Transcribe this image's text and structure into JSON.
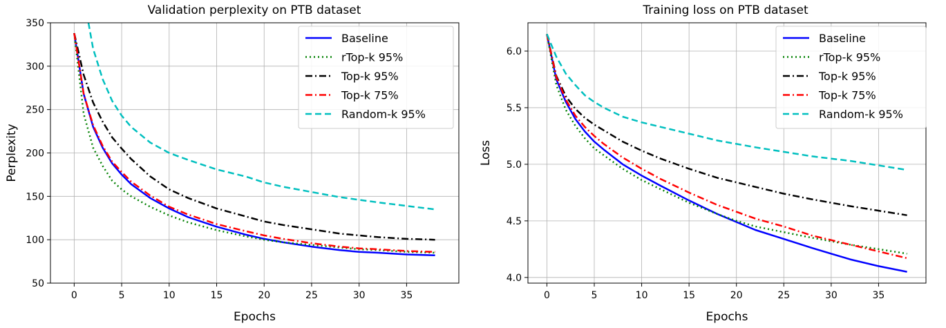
{
  "chart_data": [
    {
      "type": "line",
      "title": "Validation perplexity on PTB dataset",
      "xlabel": "Epochs",
      "ylabel": "Perplexity",
      "xlim": [
        -2.5,
        40.5
      ],
      "ylim": [
        50,
        350
      ],
      "xticks": [
        "0",
        "5",
        "10",
        "15",
        "20",
        "25",
        "30",
        "35"
      ],
      "yticks": [
        "50",
        "100",
        "150",
        "200",
        "250",
        "300",
        "350"
      ],
      "grid": true,
      "legend_position": "top-right",
      "series": [
        {
          "name": "Baseline",
          "color": "#0000ff",
          "style": "solid",
          "x": [
            0,
            1,
            2,
            3,
            4,
            5,
            6,
            8,
            10,
            12,
            15,
            18,
            20,
            22,
            25,
            28,
            30,
            32,
            35,
            38
          ],
          "y": [
            338,
            268,
            230,
            206,
            188,
            175,
            164,
            148,
            136,
            126,
            115,
            106,
            101,
            97,
            92,
            88,
            86,
            85,
            83,
            82
          ]
        },
        {
          "name": "rTop-k 95%",
          "color": "#008000",
          "style": "dotted",
          "x": [
            0,
            1,
            2,
            3,
            4,
            5,
            6,
            8,
            10,
            12,
            15,
            18,
            20,
            22,
            25,
            28,
            30,
            32,
            35,
            38
          ],
          "y": [
            338,
            245,
            206,
            185,
            168,
            158,
            150,
            138,
            128,
            120,
            111,
            104,
            100,
            97,
            94,
            91,
            89,
            88,
            86,
            85
          ]
        },
        {
          "name": "Top-k 95%",
          "color": "#000000",
          "style": "dashdot",
          "x": [
            0,
            1,
            2,
            3,
            4,
            5,
            6,
            8,
            10,
            12,
            15,
            18,
            20,
            22,
            25,
            28,
            30,
            32,
            35,
            38
          ],
          "y": [
            338,
            290,
            258,
            236,
            218,
            205,
            193,
            173,
            158,
            148,
            136,
            127,
            121,
            117,
            112,
            107,
            105,
            103,
            101,
            100
          ]
        },
        {
          "name": "Top-k 75%",
          "color": "#ff0000",
          "style": "dashdot",
          "x": [
            0,
            1,
            2,
            3,
            4,
            5,
            6,
            8,
            10,
            12,
            15,
            18,
            20,
            22,
            25,
            28,
            30,
            32,
            35,
            38
          ],
          "y": [
            338,
            268,
            232,
            208,
            190,
            178,
            167,
            151,
            138,
            129,
            118,
            110,
            105,
            101,
            96,
            92,
            90,
            89,
            87,
            86
          ]
        },
        {
          "name": "Random-k 95%",
          "color": "#00bfbf",
          "style": "dashed",
          "x": [
            1.5,
            2,
            3,
            4,
            5,
            6,
            8,
            10,
            12,
            15,
            18,
            20,
            22,
            25,
            28,
            30,
            32,
            35,
            38
          ],
          "y": [
            350,
            320,
            285,
            260,
            243,
            230,
            212,
            200,
            192,
            181,
            173,
            166,
            161,
            155,
            149,
            146,
            143,
            139,
            135
          ]
        }
      ]
    },
    {
      "type": "line",
      "title": "Training loss on PTB dataset",
      "xlabel": "Epochs",
      "ylabel": "Loss",
      "xlim": [
        -2,
        40
      ],
      "ylim": [
        3.95,
        6.25
      ],
      "xticks": [
        "0",
        "5",
        "10",
        "15",
        "20",
        "25",
        "30",
        "35"
      ],
      "yticks": [
        "4.0",
        "4.5",
        "5.0",
        "5.5",
        "6.0"
      ],
      "grid": true,
      "legend_position": "top-right",
      "series": [
        {
          "name": "Baseline",
          "color": "#0000ff",
          "style": "solid",
          "x": [
            0,
            1,
            2,
            3,
            4,
            5,
            6,
            8,
            10,
            12,
            15,
            18,
            20,
            22,
            25,
            28,
            30,
            32,
            35,
            38
          ],
          "y": [
            6.15,
            5.75,
            5.55,
            5.4,
            5.29,
            5.2,
            5.13,
            5.0,
            4.9,
            4.81,
            4.68,
            4.56,
            4.49,
            4.42,
            4.34,
            4.26,
            4.21,
            4.16,
            4.1,
            4.05
          ]
        },
        {
          "name": "rTop-k 95%",
          "color": "#008000",
          "style": "dotted",
          "x": [
            0,
            1,
            2,
            3,
            4,
            5,
            6,
            8,
            10,
            12,
            15,
            18,
            20,
            22,
            25,
            28,
            30,
            32,
            35,
            38
          ],
          "y": [
            6.15,
            5.7,
            5.48,
            5.34,
            5.23,
            5.14,
            5.08,
            4.96,
            4.86,
            4.78,
            4.66,
            4.56,
            4.5,
            4.45,
            4.4,
            4.35,
            4.32,
            4.29,
            4.25,
            4.21
          ]
        },
        {
          "name": "Top-k 95%",
          "color": "#000000",
          "style": "dashdot",
          "x": [
            0,
            1,
            2,
            3,
            4,
            5,
            6,
            8,
            10,
            12,
            15,
            18,
            20,
            22,
            25,
            28,
            30,
            32,
            35,
            38
          ],
          "y": [
            6.15,
            5.78,
            5.6,
            5.49,
            5.41,
            5.35,
            5.3,
            5.2,
            5.12,
            5.05,
            4.96,
            4.88,
            4.84,
            4.8,
            4.74,
            4.69,
            4.66,
            4.63,
            4.59,
            4.55
          ]
        },
        {
          "name": "Top-k 75%",
          "color": "#ff0000",
          "style": "dashdot",
          "x": [
            0,
            1,
            2,
            3,
            4,
            5,
            6,
            8,
            10,
            12,
            15,
            18,
            20,
            22,
            25,
            28,
            30,
            32,
            35,
            38
          ],
          "y": [
            6.15,
            5.77,
            5.57,
            5.43,
            5.33,
            5.25,
            5.18,
            5.06,
            4.96,
            4.87,
            4.75,
            4.64,
            4.58,
            4.52,
            4.45,
            4.37,
            4.33,
            4.29,
            4.23,
            4.17
          ]
        },
        {
          "name": "Random-k 95%",
          "color": "#00bfbf",
          "style": "dashed",
          "x": [
            0,
            1,
            2,
            3,
            4,
            5,
            6,
            8,
            10,
            12,
            15,
            18,
            20,
            22,
            25,
            28,
            30,
            32,
            35,
            38
          ],
          "y": [
            6.15,
            5.95,
            5.8,
            5.7,
            5.61,
            5.55,
            5.5,
            5.42,
            5.37,
            5.33,
            5.27,
            5.21,
            5.18,
            5.15,
            5.11,
            5.07,
            5.05,
            5.03,
            4.99,
            4.95
          ]
        }
      ]
    }
  ]
}
